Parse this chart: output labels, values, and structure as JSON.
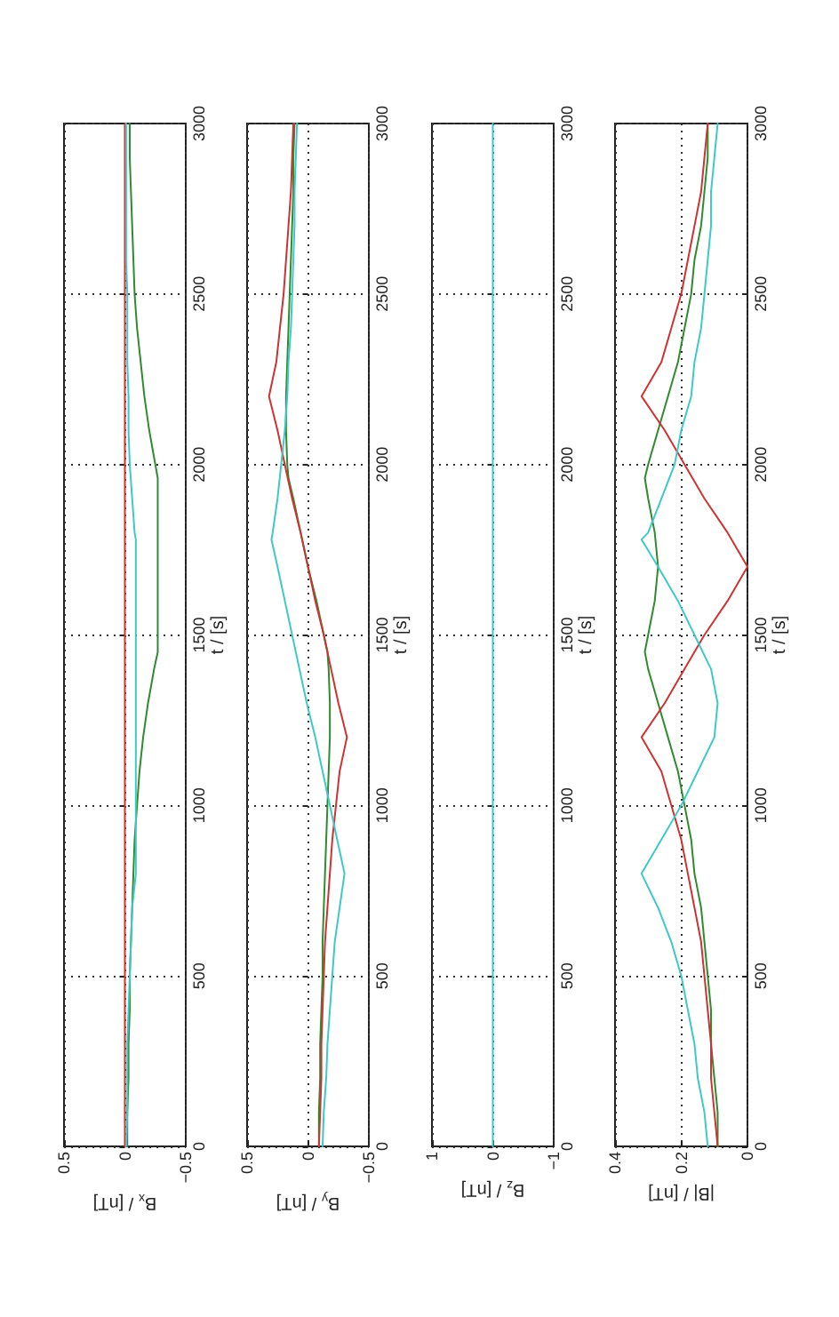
{
  "chart_data": [
    {
      "type": "line",
      "xlabel": "B$_{x}$ / [nT]",
      "ylabel": "t / [s]",
      "xlim": [
        0.5,
        -0.5
      ],
      "xticks": [
        0.5,
        0,
        -0.5
      ],
      "ylim": [
        0,
        3000
      ],
      "yticks": [
        0,
        500,
        1000,
        1500,
        2000,
        2500,
        3000
      ],
      "grid": true,
      "series": [
        {
          "color": "#2e8b2e",
          "x": [
            -0.02,
            -0.02,
            -0.03,
            -0.03,
            -0.04,
            -0.04,
            -0.05,
            -0.06,
            -0.07,
            -0.08,
            -0.1,
            -0.12,
            -0.15,
            -0.19,
            -0.24,
            -0.27,
            -0.27,
            -0.27,
            -0.27,
            -0.27,
            -0.27,
            -0.27,
            -0.25,
            -0.2,
            -0.16,
            -0.13,
            -0.1,
            -0.08,
            -0.07,
            -0.06,
            -0.05,
            -0.04,
            -0.04
          ],
          "values": [
            0,
            100,
            200,
            300,
            400,
            500,
            600,
            700,
            800,
            900,
            1000,
            1100,
            1200,
            1300,
            1400,
            1450,
            1500,
            1600,
            1700,
            1800,
            1900,
            1960,
            2000,
            2100,
            2200,
            2300,
            2400,
            2500,
            2600,
            2700,
            2800,
            2900,
            3000
          ]
        },
        {
          "color": "#cc3333",
          "x": [
            0,
            0
          ],
          "values": [
            0,
            3000
          ]
        },
        {
          "color": "#40c8c8",
          "x": [
            -0.01,
            -0.02,
            -0.02,
            -0.02,
            -0.03,
            -0.04,
            -0.05,
            -0.06,
            -0.09,
            -0.09,
            -0.09,
            -0.09,
            -0.09,
            -0.09,
            -0.09,
            -0.09,
            -0.09,
            -0.09,
            -0.09,
            -0.08,
            -0.06,
            -0.04,
            -0.03,
            -0.03,
            -0.02,
            -0.02,
            -0.02,
            -0.01,
            -0.01,
            -0.01,
            -0.01,
            -0.01
          ],
          "values": [
            0,
            100,
            200,
            300,
            400,
            500,
            600,
            700,
            800,
            900,
            1000,
            1100,
            1200,
            1300,
            1400,
            1500,
            1600,
            1700,
            1780,
            1800,
            1900,
            2000,
            2100,
            2200,
            2300,
            2400,
            2500,
            2600,
            2700,
            2800,
            2900,
            3000
          ]
        }
      ]
    },
    {
      "type": "line",
      "xlabel": "B$_{y}$ / [nT]",
      "ylabel": "t / [s]",
      "xlim": [
        0.5,
        -0.5
      ],
      "xticks": [
        0.5,
        0,
        -0.5
      ],
      "ylim": [
        0,
        3000
      ],
      "yticks": [
        0,
        500,
        1000,
        1500,
        2000,
        2500,
        3000
      ],
      "grid": true,
      "series": [
        {
          "color": "#2e8b2e",
          "x": [
            -0.09,
            -0.09,
            -0.1,
            -0.1,
            -0.11,
            -0.12,
            -0.12,
            -0.13,
            -0.14,
            -0.15,
            -0.16,
            -0.17,
            -0.18,
            -0.18,
            -0.17,
            -0.16,
            -0.13,
            -0.07,
            0,
            0.06,
            0.12,
            0.16,
            0.17,
            0.18,
            0.18,
            0.17,
            0.16,
            0.15,
            0.14,
            0.13,
            0.12,
            0.12,
            0.11
          ],
          "values": [
            0,
            100,
            200,
            300,
            400,
            500,
            600,
            700,
            800,
            900,
            1000,
            1100,
            1200,
            1300,
            1400,
            1450,
            1500,
            1600,
            1700,
            1800,
            1900,
            1960,
            2000,
            2100,
            2200,
            2300,
            2400,
            2500,
            2600,
            2700,
            2800,
            2900,
            3000
          ]
        },
        {
          "color": "#cc3333",
          "x": [
            -0.09,
            -0.1,
            -0.11,
            -0.11,
            -0.12,
            -0.13,
            -0.14,
            -0.16,
            -0.18,
            -0.2,
            -0.23,
            -0.26,
            -0.32,
            -0.25,
            -0.19,
            -0.13,
            -0.06,
            0,
            0.06,
            0.13,
            0.19,
            0.25,
            0.32,
            0.26,
            0.23,
            0.2,
            0.18,
            0.16,
            0.14,
            0.13,
            0.12
          ],
          "values": [
            0,
            100,
            200,
            300,
            400,
            500,
            600,
            700,
            800,
            900,
            1000,
            1100,
            1200,
            1300,
            1400,
            1500,
            1600,
            1700,
            1800,
            1900,
            2000,
            2100,
            2200,
            2300,
            2400,
            2500,
            2600,
            2700,
            2800,
            2900,
            3000
          ]
        },
        {
          "color": "#40c8c8",
          "x": [
            -0.12,
            -0.13,
            -0.15,
            -0.16,
            -0.18,
            -0.2,
            -0.22,
            -0.26,
            -0.3,
            -0.24,
            -0.18,
            -0.12,
            -0.06,
            0.01,
            0.07,
            0.13,
            0.19,
            0.25,
            0.3,
            0.29,
            0.25,
            0.22,
            0.19,
            0.17,
            0.16,
            0.14,
            0.13,
            0.12,
            0.11,
            0.11,
            0.1,
            0.09
          ],
          "values": [
            0,
            100,
            200,
            300,
            400,
            500,
            600,
            700,
            800,
            900,
            1000,
            1100,
            1200,
            1300,
            1400,
            1500,
            1600,
            1700,
            1780,
            1800,
            1900,
            2000,
            2100,
            2200,
            2300,
            2400,
            2500,
            2600,
            2700,
            2800,
            2900,
            3000
          ]
        }
      ]
    },
    {
      "type": "line",
      "xlabel": "B$_{z}$ / [nT]",
      "ylabel": "t / [s]",
      "xlim": [
        1,
        -1
      ],
      "xticks": [
        1,
        0,
        -1
      ],
      "ylim": [
        0,
        3000
      ],
      "yticks": [
        0,
        500,
        1000,
        1500,
        2000,
        2500,
        3000
      ],
      "grid": true,
      "series": [
        {
          "color": "#40c8c8",
          "x": [
            0,
            0
          ],
          "values": [
            0,
            3000
          ]
        }
      ]
    },
    {
      "type": "line",
      "xlabel": "|B| / [nT]",
      "ylabel": "t / [s]",
      "xlim": [
        0.4,
        0
      ],
      "xticks": [
        0.4,
        0.2,
        0
      ],
      "ylim": [
        0,
        3000
      ],
      "yticks": [
        0,
        500,
        1000,
        1500,
        2000,
        2500,
        3000
      ],
      "grid": true,
      "series": [
        {
          "color": "#2e8b2e",
          "x": [
            0.09,
            0.09,
            0.1,
            0.11,
            0.11,
            0.12,
            0.13,
            0.14,
            0.16,
            0.17,
            0.19,
            0.21,
            0.24,
            0.27,
            0.3,
            0.31,
            0.3,
            0.28,
            0.27,
            0.28,
            0.3,
            0.31,
            0.3,
            0.27,
            0.24,
            0.21,
            0.19,
            0.17,
            0.16,
            0.14,
            0.13,
            0.12,
            0.12
          ],
          "values": [
            0,
            100,
            200,
            300,
            400,
            500,
            600,
            700,
            800,
            900,
            1000,
            1100,
            1200,
            1300,
            1400,
            1450,
            1500,
            1600,
            1700,
            1800,
            1900,
            1960,
            2000,
            2100,
            2200,
            2300,
            2400,
            2500,
            2600,
            2700,
            2800,
            2900,
            3000
          ]
        },
        {
          "color": "#cc3333",
          "x": [
            0.09,
            0.1,
            0.11,
            0.11,
            0.12,
            0.13,
            0.14,
            0.16,
            0.18,
            0.2,
            0.23,
            0.26,
            0.32,
            0.25,
            0.19,
            0.13,
            0.06,
            0,
            0.06,
            0.13,
            0.19,
            0.25,
            0.32,
            0.26,
            0.23,
            0.2,
            0.18,
            0.16,
            0.14,
            0.13,
            0.12
          ],
          "values": [
            0,
            100,
            200,
            300,
            400,
            500,
            600,
            700,
            800,
            900,
            1000,
            1100,
            1200,
            1300,
            1400,
            1500,
            1600,
            1700,
            1800,
            1900,
            2000,
            2100,
            2200,
            2300,
            2400,
            2500,
            2600,
            2700,
            2800,
            2900,
            3000
          ]
        },
        {
          "color": "#40c8c8",
          "x": [
            0.12,
            0.13,
            0.15,
            0.16,
            0.18,
            0.2,
            0.23,
            0.27,
            0.32,
            0.26,
            0.2,
            0.15,
            0.1,
            0.09,
            0.11,
            0.16,
            0.21,
            0.27,
            0.32,
            0.3,
            0.26,
            0.22,
            0.2,
            0.17,
            0.16,
            0.14,
            0.13,
            0.12,
            0.11,
            0.11,
            0.1,
            0.09
          ],
          "values": [
            0,
            100,
            200,
            300,
            400,
            500,
            600,
            700,
            800,
            900,
            1000,
            1100,
            1200,
            1300,
            1400,
            1500,
            1600,
            1700,
            1780,
            1800,
            1900,
            2000,
            2100,
            2200,
            2300,
            2400,
            2500,
            2600,
            2700,
            2800,
            2900,
            3000
          ]
        }
      ]
    }
  ]
}
